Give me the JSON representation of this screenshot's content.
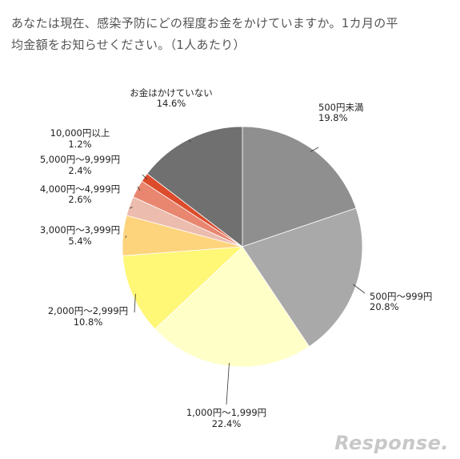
{
  "chart_data": {
    "type": "pie",
    "title_line1": "あなたは現在、感染予防にどの程度お金をかけていますか。1カ月の平",
    "title_line2": "均金額をお知らせください。（1人あたり）",
    "slices": [
      {
        "label": "500円未満",
        "value": 19.8,
        "pct": "19.8%",
        "color": "#8f8f8f"
      },
      {
        "label": "500円～999円",
        "value": 20.8,
        "pct": "20.8%",
        "color": "#a9a9a9"
      },
      {
        "label": "1,000円～1,999円",
        "value": 22.4,
        "pct": "22.4%",
        "color": "#ffffc8"
      },
      {
        "label": "2,000円～2,999円",
        "value": 10.8,
        "pct": "10.8%",
        "color": "#fff776"
      },
      {
        "label": "3,000円～3,999円",
        "value": 5.4,
        "pct": "5.4%",
        "color": "#fdd37c"
      },
      {
        "label": "4,000円～4,999円",
        "value": 2.6,
        "pct": "2.6%",
        "color": "#ecbcae"
      },
      {
        "label": "5,000円～9,999円",
        "value": 2.4,
        "pct": "2.4%",
        "color": "#e88670"
      },
      {
        "label": "10,000円以上",
        "value": 1.2,
        "pct": "1.2%",
        "color": "#dc4c2c"
      },
      {
        "label": "お金はかけていない",
        "value": 14.6,
        "pct": "14.6%",
        "color": "#707070"
      }
    ]
  },
  "watermark": "Response."
}
